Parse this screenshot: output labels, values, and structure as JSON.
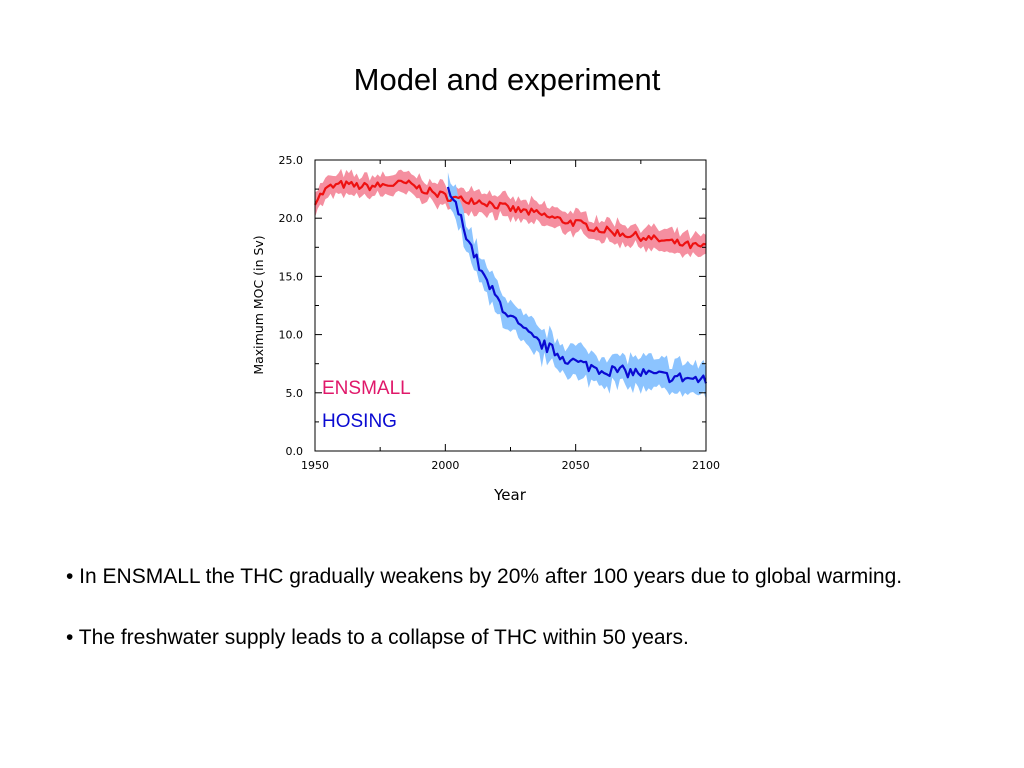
{
  "slide": {
    "title": "Model and experiment",
    "bullets": [
      "• In ENSMALL the THC gradually weakens by 20% after 100 years due to global warming.",
      "• The freshwater supply leads to a collapse of THC within 50 years."
    ]
  },
  "chart_data": {
    "type": "line",
    "title": "",
    "xlabel": "Year",
    "ylabel": "Maximum MOC (in Sv)",
    "xlim": [
      1950,
      2100
    ],
    "ylim": [
      0,
      25
    ],
    "xticks": [
      1950,
      2000,
      2050,
      2100
    ],
    "xtick_labels": [
      "1950",
      "2000",
      "2050",
      "2100"
    ],
    "yticks": [
      0,
      5,
      10,
      15,
      20,
      25
    ],
    "ytick_labels": [
      "0.0",
      "5.0",
      "10.0",
      "15.0",
      "20.0",
      "25.0"
    ],
    "grid": false,
    "legend_placement": "inside lower-left",
    "series": [
      {
        "name": "ENSMALL",
        "color": "#ee1111",
        "band_color": "#f58fa0",
        "x": [
          1950,
          1955,
          1960,
          1965,
          1970,
          1975,
          1980,
          1985,
          1990,
          1995,
          2000,
          2005,
          2010,
          2015,
          2020,
          2025,
          2030,
          2035,
          2040,
          2045,
          2050,
          2055,
          2060,
          2065,
          2070,
          2075,
          2080,
          2085,
          2090,
          2095,
          2100
        ],
        "values": [
          21.5,
          22.6,
          22.9,
          22.8,
          22.7,
          22.8,
          22.9,
          23.0,
          22.6,
          22.2,
          21.9,
          21.6,
          21.6,
          21.4,
          21.1,
          20.8,
          20.6,
          20.4,
          20.1,
          19.8,
          19.6,
          19.3,
          19.0,
          18.8,
          18.6,
          18.4,
          18.2,
          18.0,
          17.8,
          17.6,
          17.5
        ],
        "spread": 0.9
      },
      {
        "name": "HOSING",
        "color": "#0a0ad2",
        "band_color": "#8cc4ff",
        "x": [
          2001,
          2005,
          2010,
          2015,
          2020,
          2025,
          2030,
          2035,
          2040,
          2045,
          2050,
          2055,
          2060,
          2065,
          2070,
          2075,
          2080,
          2085,
          2090,
          2095,
          2100
        ],
        "values": [
          22.5,
          20.5,
          17.5,
          14.8,
          13.0,
          11.5,
          10.3,
          9.4,
          8.8,
          8.1,
          7.6,
          7.3,
          7.0,
          6.9,
          6.8,
          6.7,
          6.5,
          6.4,
          6.3,
          6.2,
          6.0
        ],
        "spread": 1.3
      }
    ]
  }
}
